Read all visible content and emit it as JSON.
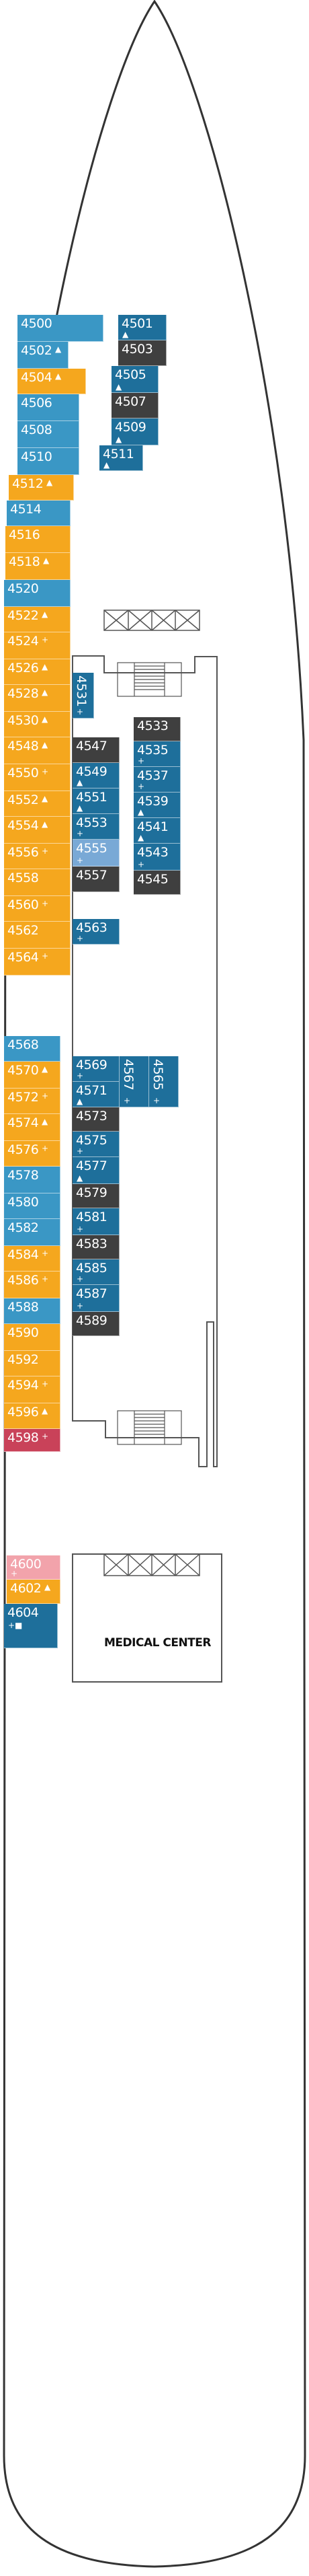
{
  "map": {
    "medical_label": "MEDICAL CENTER",
    "colors": {
      "blue": "#3a97c5",
      "orange": "#f5a71e",
      "teal": "#1e6f9b",
      "dark": "#3f3f3f",
      "light": "#79a9d6",
      "red": "#c94259",
      "pink": "#f2a3ab",
      "outline": "#333333"
    }
  },
  "cabins": [
    {
      "id": "4500",
      "sym": "",
      "color": "blue"
    },
    {
      "id": "4502",
      "sym": "▲",
      "color": "blue"
    },
    {
      "id": "4504",
      "sym": "▲",
      "color": "orange"
    },
    {
      "id": "4506",
      "sym": "",
      "color": "blue"
    },
    {
      "id": "4508",
      "sym": "",
      "color": "blue"
    },
    {
      "id": "4510",
      "sym": "",
      "color": "blue"
    },
    {
      "id": "4501",
      "sym": "▲",
      "color": "teal"
    },
    {
      "id": "4503",
      "sym": "",
      "color": "dark"
    },
    {
      "id": "4505",
      "sym": "▲",
      "color": "teal"
    },
    {
      "id": "4507",
      "sym": "",
      "color": "dark"
    },
    {
      "id": "4509",
      "sym": "▲",
      "color": "teal"
    },
    {
      "id": "4511",
      "sym": "▲",
      "color": "teal"
    },
    {
      "id": "4512",
      "sym": "▲",
      "color": "orange"
    },
    {
      "id": "4514",
      "sym": "",
      "color": "blue"
    },
    {
      "id": "4516",
      "sym": "",
      "color": "orange"
    },
    {
      "id": "4518",
      "sym": "▲",
      "color": "orange"
    },
    {
      "id": "4520",
      "sym": "",
      "color": "blue"
    },
    {
      "id": "4522",
      "sym": "▲",
      "color": "orange"
    },
    {
      "id": "4524",
      "sym": "+",
      "color": "orange"
    },
    {
      "id": "4526",
      "sym": "▲",
      "color": "orange"
    },
    {
      "id": "4528",
      "sym": "▲",
      "color": "orange"
    },
    {
      "id": "4530",
      "sym": "▲",
      "color": "orange"
    },
    {
      "id": "4548",
      "sym": "▲",
      "color": "orange"
    },
    {
      "id": "4550",
      "sym": "+",
      "color": "orange"
    },
    {
      "id": "4552",
      "sym": "▲",
      "color": "orange"
    },
    {
      "id": "4554",
      "sym": "▲",
      "color": "orange"
    },
    {
      "id": "4556",
      "sym": "+",
      "color": "orange"
    },
    {
      "id": "4558",
      "sym": "",
      "color": "orange"
    },
    {
      "id": "4560",
      "sym": "+",
      "color": "orange"
    },
    {
      "id": "4562",
      "sym": "",
      "color": "orange"
    },
    {
      "id": "4564",
      "sym": "+",
      "color": "orange"
    },
    {
      "id": "4531",
      "sym": "+",
      "color": "teal"
    },
    {
      "id": "4533",
      "sym": "",
      "color": "dark"
    },
    {
      "id": "4535",
      "sym": "+",
      "color": "teal"
    },
    {
      "id": "4537",
      "sym": "+",
      "color": "teal"
    },
    {
      "id": "4539",
      "sym": "▲",
      "color": "teal"
    },
    {
      "id": "4541",
      "sym": "▲",
      "color": "teal"
    },
    {
      "id": "4543",
      "sym": "+",
      "color": "teal"
    },
    {
      "id": "4545",
      "sym": "",
      "color": "dark"
    },
    {
      "id": "4547",
      "sym": "",
      "color": "dark"
    },
    {
      "id": "4549",
      "sym": "▲",
      "color": "teal"
    },
    {
      "id": "4551",
      "sym": "▲",
      "color": "teal"
    },
    {
      "id": "4553",
      "sym": "+",
      "color": "teal"
    },
    {
      "id": "4555",
      "sym": "+",
      "color": "light"
    },
    {
      "id": "4557",
      "sym": "",
      "color": "dark"
    },
    {
      "id": "4563",
      "sym": "+",
      "color": "teal"
    },
    {
      "id": "4568",
      "sym": "",
      "color": "blue"
    },
    {
      "id": "4570",
      "sym": "▲",
      "color": "orange"
    },
    {
      "id": "4572",
      "sym": "+",
      "color": "orange"
    },
    {
      "id": "4574",
      "sym": "▲",
      "color": "orange"
    },
    {
      "id": "4576",
      "sym": "+",
      "color": "orange"
    },
    {
      "id": "4578",
      "sym": "",
      "color": "blue"
    },
    {
      "id": "4580",
      "sym": "",
      "color": "blue"
    },
    {
      "id": "4582",
      "sym": "",
      "color": "blue"
    },
    {
      "id": "4584",
      "sym": "+",
      "color": "orange"
    },
    {
      "id": "4586",
      "sym": "+",
      "color": "orange"
    },
    {
      "id": "4588",
      "sym": "",
      "color": "blue"
    },
    {
      "id": "4590",
      "sym": "",
      "color": "orange"
    },
    {
      "id": "4592",
      "sym": "",
      "color": "orange"
    },
    {
      "id": "4594",
      "sym": "+",
      "color": "orange"
    },
    {
      "id": "4596",
      "sym": "▲",
      "color": "orange"
    },
    {
      "id": "4598",
      "sym": "+",
      "color": "red"
    },
    {
      "id": "4569",
      "sym": "+",
      "color": "teal"
    },
    {
      "id": "4571",
      "sym": "▲",
      "color": "teal"
    },
    {
      "id": "4567",
      "sym": "+",
      "color": "teal"
    },
    {
      "id": "4565",
      "sym": "+",
      "color": "teal"
    },
    {
      "id": "4573",
      "sym": "",
      "color": "dark"
    },
    {
      "id": "4575",
      "sym": "+",
      "color": "teal"
    },
    {
      "id": "4577",
      "sym": "▲",
      "color": "teal"
    },
    {
      "id": "4579",
      "sym": "",
      "color": "dark"
    },
    {
      "id": "4581",
      "sym": "+",
      "color": "teal"
    },
    {
      "id": "4583",
      "sym": "",
      "color": "dark"
    },
    {
      "id": "4585",
      "sym": "+",
      "color": "teal"
    },
    {
      "id": "4587",
      "sym": "+",
      "color": "teal"
    },
    {
      "id": "4589",
      "sym": "",
      "color": "dark"
    },
    {
      "id": "4600",
      "sym": "+",
      "color": "pink"
    },
    {
      "id": "4602",
      "sym": "▲",
      "color": "orange"
    },
    {
      "id": "4604",
      "sym": "+■",
      "color": "teal"
    }
  ]
}
